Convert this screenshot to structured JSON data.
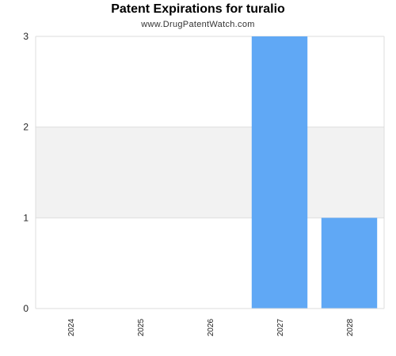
{
  "header": {
    "title": "Patent Expirations for turalio",
    "subtitle": "www.DrugPatentWatch.com"
  },
  "chart_data": {
    "type": "bar",
    "title": "Patent Expirations for turalio",
    "subtitle": "www.DrugPatentWatch.com",
    "categories": [
      "2024",
      "2025",
      "2026",
      "2027",
      "2028"
    ],
    "values": [
      0,
      0,
      0,
      3,
      1
    ],
    "ylim": [
      0,
      3
    ],
    "yticks": [
      "0",
      "1",
      "2",
      "3"
    ],
    "grid": true,
    "legend": "none",
    "colors": {
      "bar": "#60a8f5",
      "band": "#f2f2f2",
      "axis": "#dddddd"
    }
  }
}
